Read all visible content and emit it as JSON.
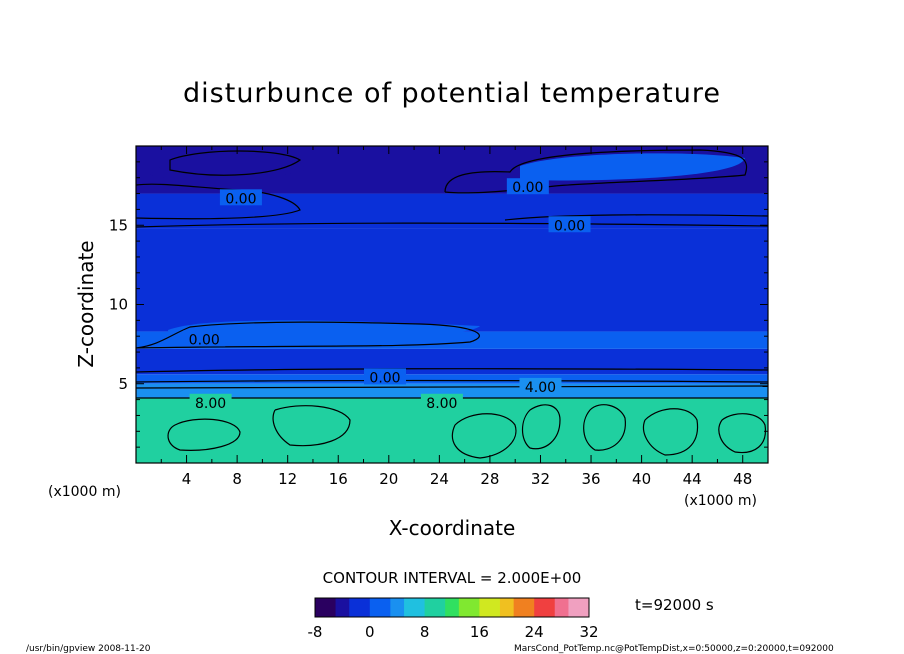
{
  "chart_data": {
    "type": "heatmap",
    "title": "disturbunce of potential temperature",
    "xlabel": "X-coordinate",
    "ylabel": "Z-coordinate",
    "x_unit_left": "(x1000 m)",
    "x_unit_right": "(x1000 m)",
    "x_ticks": [
      4,
      8,
      12,
      16,
      20,
      24,
      28,
      32,
      36,
      40,
      44,
      48
    ],
    "y_ticks": [
      5,
      10,
      15
    ],
    "xlim": [
      0,
      50
    ],
    "ylim": [
      0,
      20
    ],
    "contour_interval_label": "CONTOUR INTERVAL = 2.000E+00",
    "time_label": "t=92000 s",
    "colorbar": {
      "ticks": [
        -8,
        0,
        8,
        16,
        24,
        32
      ],
      "range": [
        -8,
        32
      ],
      "colors": [
        "#2a0060",
        "#1a10a0",
        "#0a30d8",
        "#0a60f0",
        "#1a90f0",
        "#20c0e0",
        "#20d0a0",
        "#30e060",
        "#80e830",
        "#d0e820",
        "#f0c020",
        "#f08020",
        "#f04040",
        "#f07090",
        "#f0a0c0"
      ]
    },
    "contour_labels": [
      {
        "text": "0.00",
        "x": 8.3,
        "z": 16.7
      },
      {
        "text": "0.00",
        "x": 31.0,
        "z": 17.4
      },
      {
        "text": "0.00",
        "x": 34.3,
        "z": 15.0
      },
      {
        "text": "0.00",
        "x": 5.4,
        "z": 7.8
      },
      {
        "text": "0.00",
        "x": 19.7,
        "z": 5.4
      },
      {
        "text": "4.00",
        "x": 32.0,
        "z": 4.8
      },
      {
        "text": "8.00",
        "x": 5.9,
        "z": 3.8
      },
      {
        "text": "8.00",
        "x": 24.2,
        "z": 3.8
      }
    ],
    "bands": [
      {
        "z": [
          0,
          4.1
        ],
        "value": 9
      },
      {
        "z": [
          4.1,
          5.0
        ],
        "value": 5
      },
      {
        "z": [
          5.0,
          5.6
        ],
        "value": 1
      },
      {
        "z": [
          5.6,
          7.2
        ],
        "value": -2
      },
      {
        "z": [
          7.2,
          8.3
        ],
        "value": 0
      },
      {
        "z": [
          8.3,
          14.8
        ],
        "value": -2
      },
      {
        "z": [
          14.8,
          17.0
        ],
        "value": -1
      },
      {
        "z": [
          17.0,
          20
        ],
        "value": -3
      }
    ]
  },
  "footer": {
    "left": "/usr/bin/gpview   2008-11-20",
    "right": "MarsCond_PotTemp.nc@PotTempDist,x=0:50000,z=0:20000,t=092000"
  }
}
